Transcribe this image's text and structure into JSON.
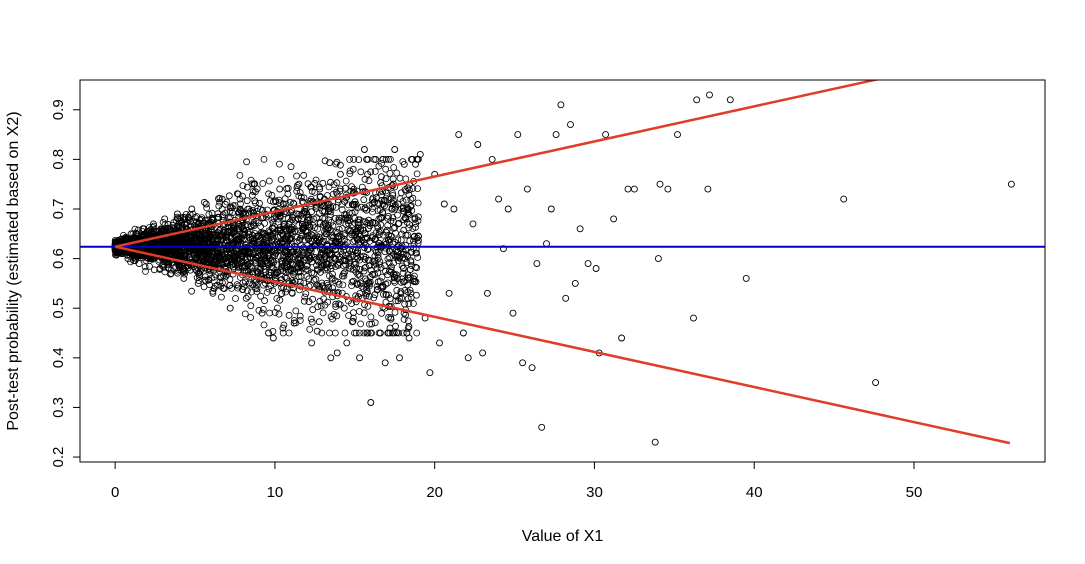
{
  "chart_data": {
    "type": "scatter",
    "title": "",
    "xlabel": "Value of X1",
    "ylabel": "Post-test probability (estimated based on X2)",
    "xlim": [
      -2.2,
      58.2
    ],
    "ylim": [
      0.19,
      0.96
    ],
    "x_ticks": [
      0,
      10,
      20,
      30,
      40,
      50
    ],
    "y_ticks": [
      0.2,
      0.3,
      0.4,
      0.5,
      0.6,
      0.7,
      0.8,
      0.9
    ],
    "x_tick_labels": [
      "0",
      "10",
      "20",
      "30",
      "40",
      "50"
    ],
    "y_tick_labels": [
      "0.2",
      "0.3",
      "0.4",
      "0.5",
      "0.6",
      "0.7",
      "0.8",
      "0.9"
    ],
    "grid": false,
    "colors": {
      "points": "#000000",
      "bounds": "#e03c28",
      "baseline": "#0000cc"
    },
    "reference_lines": [
      {
        "kind": "horizontal",
        "y": 0.624,
        "color": "#0000cc"
      },
      {
        "kind": "upper-bound",
        "x": [
          0,
          56
        ],
        "y": [
          0.624,
          1.02
        ],
        "color": "#e03c28"
      },
      {
        "kind": "lower-bound",
        "x": [
          0,
          56
        ],
        "y": [
          0.624,
          0.228
        ],
        "color": "#e03c28"
      }
    ],
    "dense_cloud": {
      "n": 3600,
      "center_y": 0.624,
      "x_range": [
        0,
        19
      ]
    },
    "points": [
      [
        0.2,
        0.63
      ],
      [
        0.4,
        0.61
      ],
      [
        0.6,
        0.64
      ],
      [
        0.8,
        0.6
      ],
      [
        1.0,
        0.65
      ],
      [
        1.2,
        0.62
      ],
      [
        1.5,
        0.59
      ],
      [
        1.8,
        0.66
      ],
      [
        2.1,
        0.6
      ],
      [
        2.4,
        0.67
      ],
      [
        2.8,
        0.58
      ],
      [
        3.1,
        0.68
      ],
      [
        3.5,
        0.57
      ],
      [
        3.9,
        0.69
      ],
      [
        4.3,
        0.56
      ],
      [
        4.8,
        0.7
      ],
      [
        5.2,
        0.55
      ],
      [
        5.7,
        0.71
      ],
      [
        6.2,
        0.54
      ],
      [
        6.7,
        0.72
      ],
      [
        7.2,
        0.5
      ],
      [
        7.7,
        0.73
      ],
      [
        8.2,
        0.52
      ],
      [
        8.7,
        0.75
      ],
      [
        9.2,
        0.49
      ],
      [
        9.6,
        0.45
      ],
      [
        9.9,
        0.44
      ],
      [
        10.3,
        0.74
      ],
      [
        10.5,
        0.46
      ],
      [
        11.2,
        0.47
      ],
      [
        11.5,
        0.75
      ],
      [
        12.3,
        0.43
      ],
      [
        12.8,
        0.74
      ],
      [
        13.1,
        0.72
      ],
      [
        13.5,
        0.4
      ],
      [
        13.9,
        0.41
      ],
      [
        14.1,
        0.77
      ],
      [
        14.5,
        0.43
      ],
      [
        14.9,
        0.78
      ],
      [
        15.3,
        0.4
      ],
      [
        15.6,
        0.82
      ],
      [
        15.8,
        0.77
      ],
      [
        16.0,
        0.31
      ],
      [
        16.3,
        0.8
      ],
      [
        16.6,
        0.45
      ],
      [
        16.9,
        0.39
      ],
      [
        17.2,
        0.46
      ],
      [
        17.5,
        0.82
      ],
      [
        17.8,
        0.4
      ],
      [
        18.1,
        0.79
      ],
      [
        18.4,
        0.44
      ],
      [
        18.8,
        0.79
      ],
      [
        19.1,
        0.81
      ],
      [
        19.4,
        0.48
      ],
      [
        19.7,
        0.37
      ],
      [
        20.0,
        0.77
      ],
      [
        20.3,
        0.43
      ],
      [
        20.6,
        0.71
      ],
      [
        20.9,
        0.53
      ],
      [
        21.2,
        0.7
      ],
      [
        21.5,
        0.85
      ],
      [
        21.8,
        0.45
      ],
      [
        22.1,
        0.4
      ],
      [
        22.4,
        0.67
      ],
      [
        22.7,
        0.83
      ],
      [
        23.0,
        0.41
      ],
      [
        23.3,
        0.53
      ],
      [
        23.6,
        0.8
      ],
      [
        24.0,
        0.72
      ],
      [
        24.3,
        0.62
      ],
      [
        24.6,
        0.7
      ],
      [
        24.9,
        0.49
      ],
      [
        25.2,
        0.85
      ],
      [
        25.5,
        0.39
      ],
      [
        25.8,
        0.74
      ],
      [
        26.1,
        0.38
      ],
      [
        26.4,
        0.59
      ],
      [
        26.7,
        0.26
      ],
      [
        27.0,
        0.63
      ],
      [
        27.3,
        0.7
      ],
      [
        27.6,
        0.85
      ],
      [
        27.9,
        0.91
      ],
      [
        28.2,
        0.52
      ],
      [
        28.5,
        0.87
      ],
      [
        28.8,
        0.55
      ],
      [
        29.1,
        0.66
      ],
      [
        29.6,
        0.59
      ],
      [
        30.1,
        0.58
      ],
      [
        30.3,
        0.41
      ],
      [
        30.7,
        0.85
      ],
      [
        31.2,
        0.68
      ],
      [
        31.7,
        0.44
      ],
      [
        32.1,
        0.74
      ],
      [
        32.5,
        0.74
      ],
      [
        33.8,
        0.23
      ],
      [
        34.0,
        0.6
      ],
      [
        34.1,
        0.75
      ],
      [
        34.6,
        0.74
      ],
      [
        35.2,
        0.85
      ],
      [
        36.2,
        0.48
      ],
      [
        36.4,
        0.92
      ],
      [
        37.1,
        0.74
      ],
      [
        37.2,
        0.93
      ],
      [
        38.5,
        0.92
      ],
      [
        39.5,
        0.56
      ],
      [
        45.6,
        0.72
      ],
      [
        47.6,
        0.35
      ],
      [
        56.1,
        0.75
      ]
    ]
  }
}
